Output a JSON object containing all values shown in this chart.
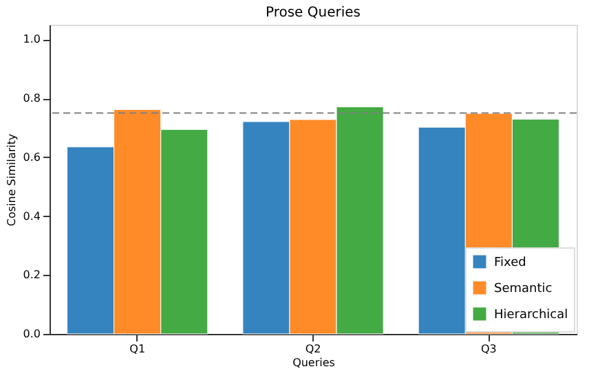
{
  "chart_data": {
    "type": "bar",
    "title": "Prose Queries",
    "xlabel": "Queries",
    "ylabel": "Cosine Similarity",
    "categories": [
      "Q1",
      "Q2",
      "Q3"
    ],
    "series": [
      {
        "name": "Fixed",
        "color": "#3583bf",
        "values": [
          0.635,
          0.721,
          0.702
        ]
      },
      {
        "name": "Semantic",
        "color": "#fe8b28",
        "values": [
          0.762,
          0.728,
          0.749
        ]
      },
      {
        "name": "Hierarchical",
        "color": "#43aa44",
        "values": [
          0.694,
          0.771,
          0.729
        ]
      }
    ],
    "ylim": [
      0,
      1.05
    ],
    "yticks": [
      {
        "value": 0,
        "label": "0.0"
      },
      {
        "value": 0.2,
        "label": "0.2"
      },
      {
        "value": 0.4,
        "label": "0.4"
      },
      {
        "value": 0.6,
        "label": "0.6"
      },
      {
        "value": 0.8,
        "label": "0.8"
      },
      {
        "value": 1.0,
        "label": "1.0"
      }
    ],
    "ref_lines": [
      {
        "axis": "y",
        "value": 0.75,
        "color": "#808080",
        "line_style": "dashed"
      }
    ],
    "legend": "bottom right",
    "grid": false
  }
}
